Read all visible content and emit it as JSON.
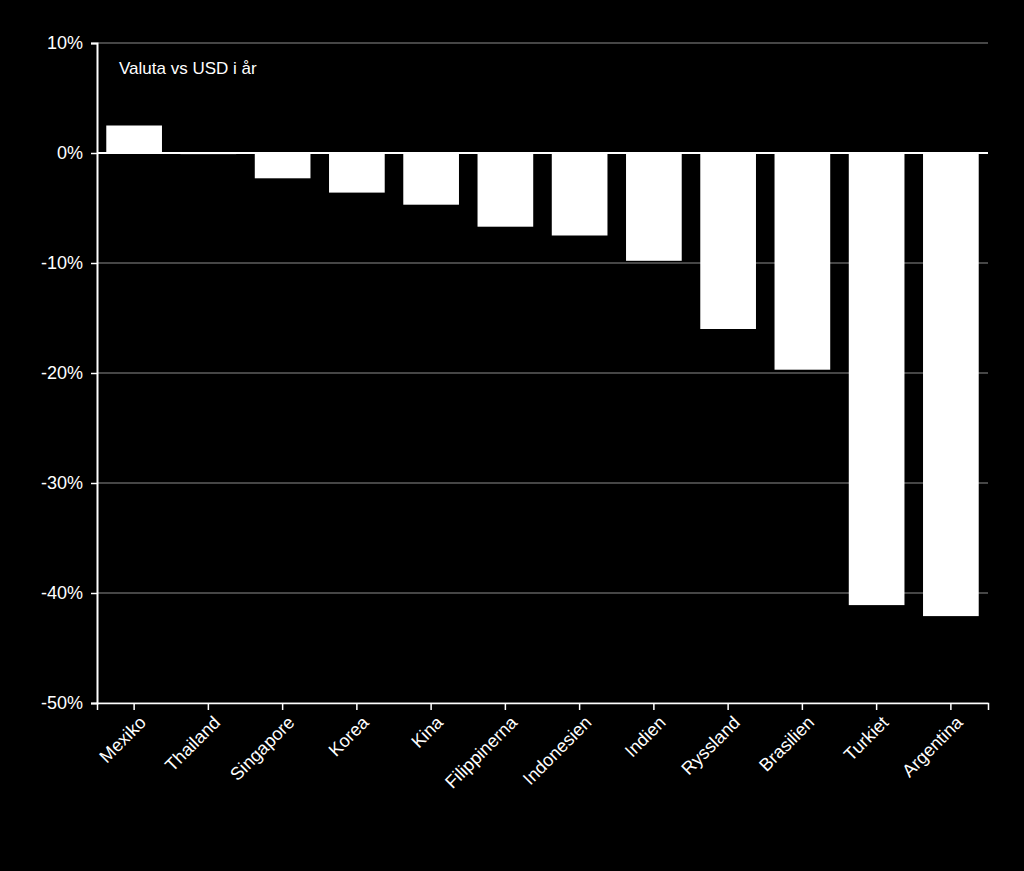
{
  "chart_data": {
    "type": "bar",
    "title": "Valuta vs USD i år",
    "categories": [
      "Mexiko",
      "Thailand",
      "Singapore",
      "Korea",
      "Kina",
      "Filippinerna",
      "Indonesien",
      "Indien",
      "Ryssland",
      "Brasilien",
      "Turkiet",
      "Argentina"
    ],
    "values": [
      2.5,
      -0.1,
      -2.3,
      -3.6,
      -4.7,
      -6.7,
      -7.5,
      -9.8,
      -16.0,
      -19.7,
      -41.1,
      -42.1
    ],
    "color": "#ffffff",
    "ylim": [
      -50,
      10
    ],
    "yticks": [
      {
        "value": -50,
        "label": "-50%"
      },
      {
        "value": -40,
        "label": "-40%"
      },
      {
        "value": -30,
        "label": "-30%"
      },
      {
        "value": -20,
        "label": "-20%"
      },
      {
        "value": -10,
        "label": "-10%"
      },
      {
        "value": 0,
        "label": "0%"
      },
      {
        "value": 10,
        "label": "10%"
      }
    ],
    "grid": true
  }
}
